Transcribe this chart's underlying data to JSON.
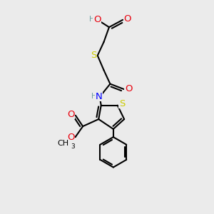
{
  "bg_color": "#ebebeb",
  "colors": {
    "C": "#000000",
    "H": "#6b9e9e",
    "O": "#e8000d",
    "N": "#0000ff",
    "S": "#cccc00",
    "bond": "#000000"
  },
  "bond_lw": 1.5,
  "font_size": 9.5,
  "font_size_small": 7.5
}
